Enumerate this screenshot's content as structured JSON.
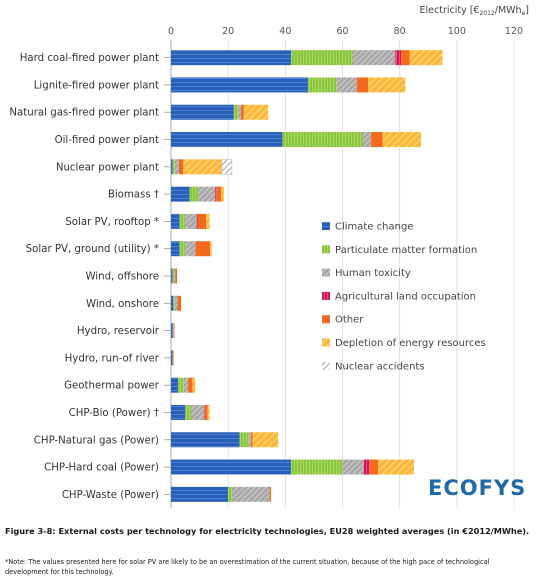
{
  "chart_data": {
    "type": "bar",
    "orientation": "horizontal",
    "stacked": true,
    "xlabel_main": "Electricity [€",
    "xlabel_sub": "2012",
    "xlabel_mid": "/MWh",
    "xlabel_sub2": "e",
    "xlabel_end": "]",
    "xlim": [
      0,
      120
    ],
    "xticks": [
      "0",
      "20",
      "40",
      "60",
      "80",
      "100",
      "120"
    ],
    "xtick_values": [
      0,
      20,
      40,
      60,
      80,
      100,
      120
    ],
    "legend_position": "right",
    "categories": [
      "Hard coal-fired power plant",
      "Lignite-fired power plant",
      "Natural gas-fired power plant",
      "Oil-fired power plant",
      "Nuclear power plant",
      "Biomass †",
      "Solar PV, rooftop *",
      "Solar PV, ground (utility) *",
      "Wind, offshore",
      "Wind, onshore",
      "Hydro, reservoir",
      "Hydro, run-of river",
      "Geothermal power",
      "CHP-Bio (Power) †",
      "CHP-Natural gas (Power)",
      "CHP-Hard coal (Power)",
      "CHP-Waste (Power)"
    ],
    "series": [
      {
        "name": "Climate change",
        "color": "#2a5fb8",
        "values": [
          42,
          48,
          22,
          39,
          0.5,
          6.5,
          3,
          3,
          0.5,
          0.8,
          0.6,
          0.5,
          2.5,
          5,
          24,
          42,
          20
        ]
      },
      {
        "name": "Particulate matter formation",
        "color": "#8cc63f",
        "values": [
          21.5,
          10,
          1.5,
          28,
          0.8,
          3,
          2,
          2,
          0.5,
          0.5,
          0.2,
          0.1,
          2,
          2,
          3,
          18,
          1.5
        ]
      },
      {
        "name": "Human toxicity",
        "color": "#a6a6a6",
        "values": [
          15,
          7,
          1,
          3,
          1.5,
          6,
          4,
          3.5,
          0.5,
          1,
          0.2,
          0.1,
          1.5,
          4.5,
          1,
          7.5,
          13
        ]
      },
      {
        "name": "Agricultural land occupation",
        "color": "#d4145a",
        "values": [
          2,
          0,
          0,
          0,
          0,
          0.5,
          0.3,
          0.2,
          0,
          0,
          0,
          0,
          0,
          0.3,
          0,
          2,
          0
        ]
      },
      {
        "name": "Other",
        "color": "#f26a1b",
        "values": [
          3,
          4,
          1,
          4,
          1.5,
          1.5,
          3,
          5,
          0.6,
          1.2,
          0.2,
          0.1,
          1.5,
          1,
          0.5,
          3,
          0.5
        ]
      },
      {
        "name": "Depletion of energy resources",
        "color": "#fbb735",
        "values": [
          11.5,
          13,
          8.5,
          13.5,
          13.5,
          1,
          1.2,
          0.5,
          0,
          0,
          0,
          0,
          1,
          0.7,
          9,
          12.5,
          0
        ]
      },
      {
        "name": "Nuclear accidents",
        "color": "#cfcfcf",
        "values": [
          0,
          0,
          0,
          0,
          3.5,
          0,
          0,
          0,
          0,
          0,
          0,
          0,
          0,
          0,
          0,
          0,
          0
        ]
      }
    ]
  },
  "logo": "ECOFYS",
  "caption": "Figure 3-8: External costs per technology for electricity technologies, EU28 weighted averages (in €2012/MWhe).",
  "note": "*Note: The values presented here for solar PV are likely to be an overestimation of the current situation, because of the high pace of technological development for this technology."
}
